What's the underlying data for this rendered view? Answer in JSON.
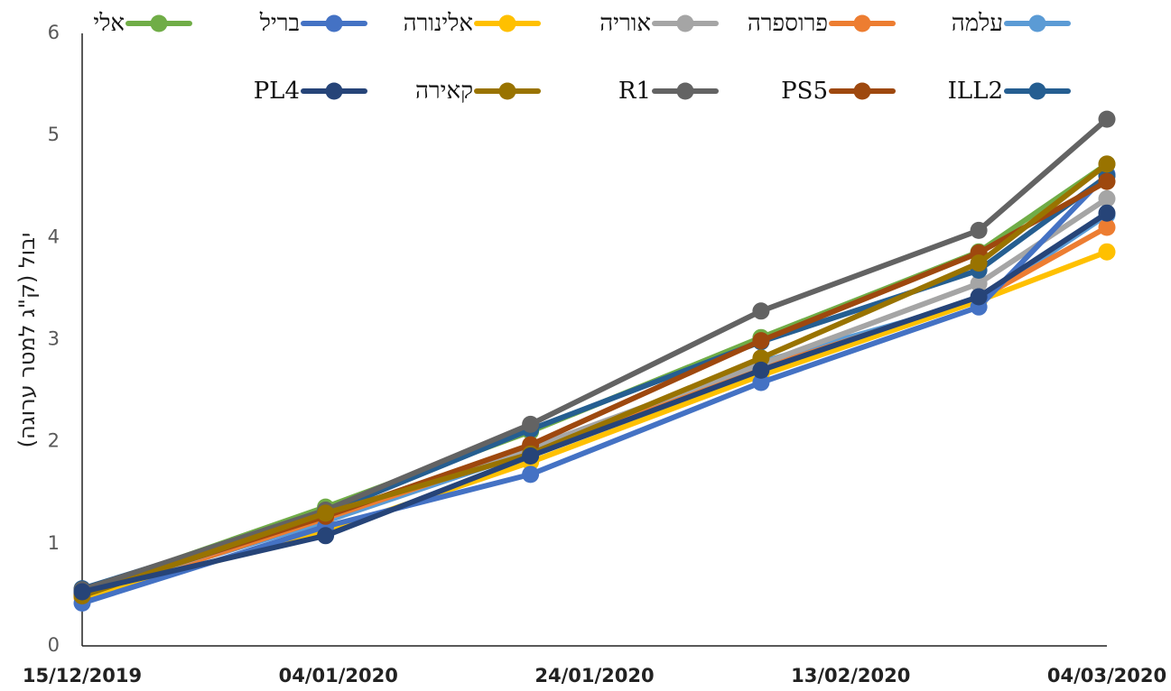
{
  "chart_data": {
    "type": "line",
    "title": "",
    "xlabel": "",
    "ylabel": "יבול (ק\"ג למטר ערוגה)",
    "ylim": [
      0,
      6
    ],
    "yticks": [
      "0",
      "1",
      "2",
      "3",
      "4",
      "5",
      "6"
    ],
    "xlim": [
      "2019-12-15",
      "2020-03-04"
    ],
    "xticks": [
      "15/12/2019",
      "04/01/2020",
      "24/01/2020",
      "13/02/2020",
      "04/03/2020"
    ],
    "x": [
      "2019-12-15",
      "2020-01-03",
      "2020-01-19",
      "2020-02-06",
      "2020-02-23",
      "2020-03-04"
    ],
    "legend_position": "top",
    "series": [
      {
        "name": "עלמה",
        "color": "#5B9BD5",
        "values": [
          0.5,
          1.22,
          1.9,
          2.78,
          3.38,
          4.22
        ]
      },
      {
        "name": "פרוספרה",
        "color": "#ED7D31",
        "values": [
          0.47,
          1.25,
          1.92,
          2.72,
          3.4,
          4.1
        ]
      },
      {
        "name": "אוריה",
        "color": "#A5A5A5",
        "values": [
          0.49,
          1.28,
          1.94,
          2.76,
          3.55,
          4.38
        ]
      },
      {
        "name": "אלינורה",
        "color": "#FFC000",
        "values": [
          0.48,
          1.12,
          1.8,
          2.65,
          3.38,
          3.86
        ]
      },
      {
        "name": "בריל",
        "color": "#4472C4",
        "values": [
          0.42,
          1.17,
          1.68,
          2.58,
          3.32,
          4.62
        ]
      },
      {
        "name": "אלי",
        "color": "#70AD47",
        "values": [
          0.53,
          1.36,
          2.1,
          3.02,
          3.86,
          4.72
        ]
      },
      {
        "name": "ILL2",
        "color": "#255E91",
        "values": [
          0.56,
          1.3,
          2.12,
          2.98,
          3.68,
          4.6
        ]
      },
      {
        "name": "PS5",
        "color": "#9E480E",
        "values": [
          0.51,
          1.27,
          1.97,
          2.99,
          3.85,
          4.55
        ]
      },
      {
        "name": "R1",
        "color": "#636363",
        "values": [
          0.55,
          1.33,
          2.17,
          3.28,
          4.07,
          5.16
        ]
      },
      {
        "name": "קאירה",
        "color": "#997300",
        "values": [
          0.49,
          1.3,
          1.88,
          2.82,
          3.75,
          4.72
        ]
      },
      {
        "name": "PL4",
        "color": "#264478",
        "values": [
          0.53,
          1.08,
          1.86,
          2.7,
          3.42,
          4.24
        ]
      }
    ]
  }
}
